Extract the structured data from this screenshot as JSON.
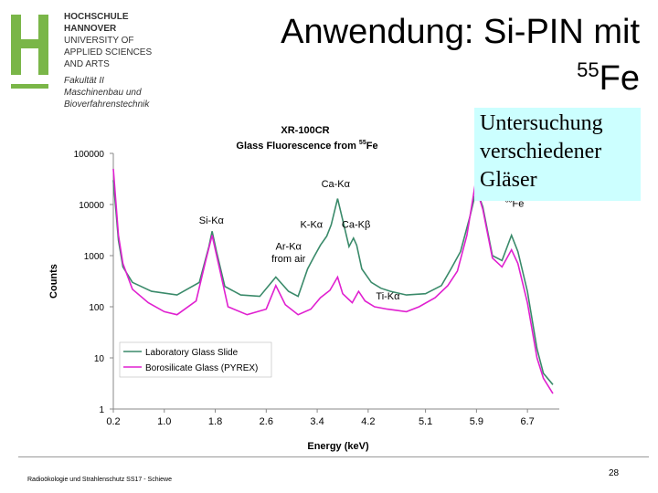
{
  "logo": {
    "lines": [
      "HOCHSCHULE",
      "HANNOVER",
      "UNIVERSITY OF",
      "APPLIED SCIENCES",
      "AND ARTS"
    ],
    "faculty": [
      "Fakultät II",
      "Maschinenbau und",
      "Bioverfahrenstechnik"
    ],
    "brand_color": "#7ab648"
  },
  "slide": {
    "title_line1": "Anwendung: Si-PIN mit",
    "title_iso_mass": "55",
    "title_iso_elem": "Fe",
    "callout": [
      "Untersuchung",
      "verschiedener",
      "Gläser"
    ],
    "callout_bg": "#ccffff",
    "footer": "Radioökologie und Strahlenschutz SS17 - Schiewe",
    "page_number": "28"
  },
  "chart_data": {
    "type": "line",
    "title": "XR-100CR",
    "subtitle_prefix": "Glass Fluorescence from ",
    "subtitle_iso": "55",
    "subtitle_elem": "Fe",
    "xlabel": "Energy (keV)",
    "ylabel": "Counts",
    "y_scale": "log",
    "xlim": [
      0.2,
      7.2
    ],
    "ylim": [
      1,
      100000
    ],
    "x_ticks": [
      "0.2",
      "1.0",
      "1.8",
      "2.6",
      "3.4",
      "4.2",
      "5.1",
      "5.9",
      "6.7"
    ],
    "x_tick_values": [
      0.2,
      1.0,
      1.8,
      2.6,
      3.4,
      4.2,
      5.1,
      5.9,
      6.7
    ],
    "y_ticks": [
      "100000",
      "10000",
      "1000",
      "100",
      "10",
      "1"
    ],
    "y_tick_values": [
      100000,
      10000,
      1000,
      100,
      10,
      1
    ],
    "series": [
      {
        "name": "Laboratory Glass Slide",
        "color": "#3a8a6a",
        "points": [
          [
            0.2,
            30000
          ],
          [
            0.28,
            2000
          ],
          [
            0.35,
            600
          ],
          [
            0.5,
            300
          ],
          [
            0.8,
            200
          ],
          [
            1.2,
            170
          ],
          [
            1.55,
            300
          ],
          [
            1.7,
            1500
          ],
          [
            1.75,
            3000
          ],
          [
            1.82,
            1200
          ],
          [
            1.95,
            250
          ],
          [
            2.2,
            170
          ],
          [
            2.5,
            160
          ],
          [
            2.75,
            380
          ],
          [
            2.95,
            200
          ],
          [
            3.1,
            160
          ],
          [
            3.25,
            550
          ],
          [
            3.35,
            950
          ],
          [
            3.45,
            1600
          ],
          [
            3.55,
            2400
          ],
          [
            3.62,
            4000
          ],
          [
            3.72,
            13000
          ],
          [
            3.8,
            5000
          ],
          [
            3.9,
            1500
          ],
          [
            3.97,
            2200
          ],
          [
            4.02,
            1600
          ],
          [
            4.1,
            550
          ],
          [
            4.25,
            300
          ],
          [
            4.4,
            230
          ],
          [
            4.55,
            200
          ],
          [
            4.8,
            170
          ],
          [
            5.1,
            180
          ],
          [
            5.35,
            260
          ],
          [
            5.5,
            550
          ],
          [
            5.65,
            1200
          ],
          [
            5.8,
            6000
          ],
          [
            5.9,
            20000
          ],
          [
            6.0,
            9000
          ],
          [
            6.15,
            1000
          ],
          [
            6.3,
            800
          ],
          [
            6.45,
            2500
          ],
          [
            6.55,
            1200
          ],
          [
            6.7,
            200
          ],
          [
            6.85,
            15
          ],
          [
            6.95,
            5
          ],
          [
            7.1,
            3
          ]
        ]
      },
      {
        "name": "Borosilicate Glass (PYREX)",
        "color": "#e020d0",
        "points": [
          [
            0.2,
            50000
          ],
          [
            0.28,
            2500
          ],
          [
            0.35,
            700
          ],
          [
            0.5,
            220
          ],
          [
            0.75,
            120
          ],
          [
            1.0,
            80
          ],
          [
            1.2,
            70
          ],
          [
            1.5,
            130
          ],
          [
            1.65,
            800
          ],
          [
            1.75,
            2500
          ],
          [
            1.85,
            700
          ],
          [
            2.0,
            100
          ],
          [
            2.3,
            70
          ],
          [
            2.6,
            90
          ],
          [
            2.75,
            260
          ],
          [
            2.9,
            110
          ],
          [
            3.1,
            70
          ],
          [
            3.3,
            90
          ],
          [
            3.45,
            150
          ],
          [
            3.6,
            210
          ],
          [
            3.72,
            380
          ],
          [
            3.8,
            180
          ],
          [
            3.95,
            120
          ],
          [
            4.05,
            200
          ],
          [
            4.15,
            130
          ],
          [
            4.3,
            100
          ],
          [
            4.5,
            90
          ],
          [
            4.8,
            80
          ],
          [
            5.0,
            100
          ],
          [
            5.25,
            150
          ],
          [
            5.45,
            260
          ],
          [
            5.6,
            500
          ],
          [
            5.75,
            2500
          ],
          [
            5.88,
            25000
          ],
          [
            6.0,
            8000
          ],
          [
            6.15,
            900
          ],
          [
            6.3,
            600
          ],
          [
            6.45,
            1300
          ],
          [
            6.55,
            700
          ],
          [
            6.7,
            120
          ],
          [
            6.85,
            10
          ],
          [
            6.95,
            4
          ],
          [
            7.1,
            2
          ]
        ]
      }
    ],
    "annotations": [
      {
        "label": "Si-Kα",
        "x": 1.74,
        "y": 4200
      },
      {
        "label": "Ca-Kα",
        "x": 3.69,
        "y": 22000
      },
      {
        "label": "K-Kα",
        "x": 3.31,
        "y": 3500
      },
      {
        "label": "Ca-Kβ",
        "x": 4.01,
        "y": 3500
      },
      {
        "label": "Ar-Kα",
        "x": 2.95,
        "y": 1300
      },
      {
        "label": "from air",
        "x": 2.95,
        "y": 750
      },
      {
        "label": "Ti-Kα",
        "x": 4.51,
        "y": 140
      }
    ],
    "peak_label_iso": "55",
    "peak_label_elem": "Fe"
  }
}
